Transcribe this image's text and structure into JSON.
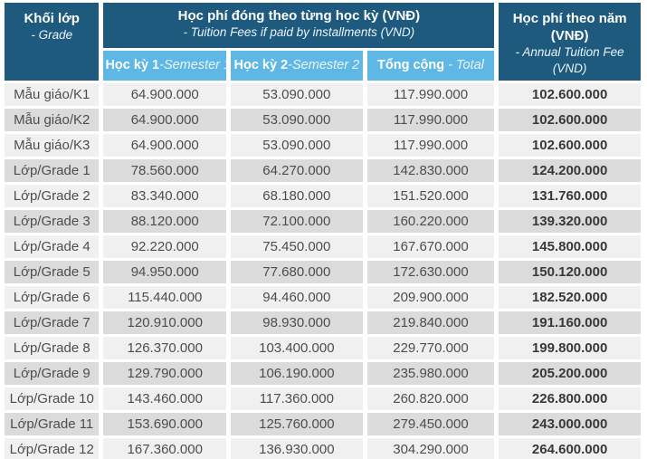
{
  "table": {
    "header": {
      "grade_col": {
        "title": "Khối lớp",
        "subtitle": "- Grade"
      },
      "installments": {
        "title": "Học phí đóng theo từng học kỳ (VNĐ)",
        "subtitle": "- Tuition Fees if paid by installments (VND)"
      },
      "annual": {
        "title_line1": "Học phí theo năm",
        "title_line2": "(VNĐ)",
        "subtitle_line1": "- Annual Tuition Fee",
        "subtitle_line2": "(VND)"
      },
      "sub_columns": [
        {
          "vi": "Học kỳ 1",
          "en": "-Semester 1"
        },
        {
          "vi": "Học kỳ 2",
          "en": "-Semester 2"
        },
        {
          "vi": "Tổng cộng",
          "en": "- Total"
        }
      ]
    },
    "rows": [
      {
        "grade": "Mẫu giáo/K1",
        "semester1": "64.900.000",
        "semester2": "53.090.000",
        "total": "117.990.000",
        "annual": "102.600.000"
      },
      {
        "grade": "Mẫu giáo/K2",
        "semester1": "64.900.000",
        "semester2": "53.090.000",
        "total": "117.990.000",
        "annual": "102.600.000"
      },
      {
        "grade": "Mẫu giáo/K3",
        "semester1": "64.900.000",
        "semester2": "53.090.000",
        "total": "117.990.000",
        "annual": "102.600.000"
      },
      {
        "grade": "Lớp/Grade 1",
        "semester1": "78.560.000",
        "semester2": "64.270.000",
        "total": "142.830.000",
        "annual": "124.200.000"
      },
      {
        "grade": "Lớp/Grade 2",
        "semester1": "83.340.000",
        "semester2": "68.180.000",
        "total": "151.520.000",
        "annual": "131.760.000"
      },
      {
        "grade": "Lớp/Grade 3",
        "semester1": "88.120.000",
        "semester2": "72.100.000",
        "total": "160.220.000",
        "annual": "139.320.000"
      },
      {
        "grade": "Lớp/Grade 4",
        "semester1": "92.220.000",
        "semester2": "75.450.000",
        "total": "167.670.000",
        "annual": "145.800.000"
      },
      {
        "grade": "Lớp/Grade 5",
        "semester1": "94.950.000",
        "semester2": "77.680.000",
        "total": "172.630.000",
        "annual": "150.120.000"
      },
      {
        "grade": "Lớp/Grade 6",
        "semester1": "115.440.000",
        "semester2": "94.460.000",
        "total": "209.900.000",
        "annual": "182.520.000"
      },
      {
        "grade": "Lớp/Grade 7",
        "semester1": "120.910.000",
        "semester2": "98.930.000",
        "total": "219.840.000",
        "annual": "191.160.000"
      },
      {
        "grade": "Lớp/Grade 8",
        "semester1": "126.370.000",
        "semester2": "103.400.000",
        "total": "229.770.000",
        "annual": "199.800.000"
      },
      {
        "grade": "Lớp/Grade 9",
        "semester1": "129.790.000",
        "semester2": "106.190.000",
        "total": "235.980.000",
        "annual": "205.200.000"
      },
      {
        "grade": "Lớp/Grade 10",
        "semester1": "143.460.000",
        "semester2": "117.360.000",
        "total": "260.820.000",
        "annual": "226.800.000"
      },
      {
        "grade": "Lớp/Grade 11",
        "semester1": "153.690.000",
        "semester2": "125.760.000",
        "total": "279.450.000",
        "annual": "243.000.000"
      },
      {
        "grade": "Lớp/Grade 12",
        "semester1": "167.360.000",
        "semester2": "136.930.000",
        "total": "304.290.000",
        "annual": "264.600.000"
      }
    ]
  },
  "colors": {
    "header_dark_blue": "#1D5A7E",
    "subheader_light_blue": "#5FB7E5",
    "row_light": "#F0F0F0",
    "row_dark": "#DBDBDB",
    "text_dark": "#4D4D4D"
  }
}
